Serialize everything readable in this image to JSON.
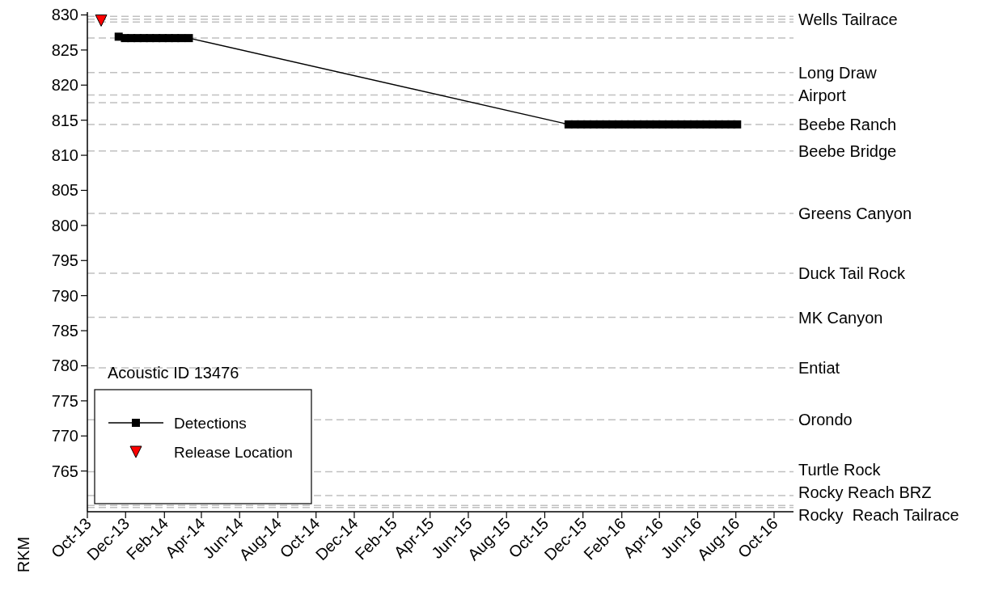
{
  "chart_data": {
    "type": "line",
    "ylabel": "RKM",
    "legend_title": "Acoustic ID 13476",
    "legend": "bottom left",
    "xlim": [
      "2013-10-01",
      "2016-11-01"
    ],
    "xticks": [
      {
        "value": "2013-10-01",
        "label": "Oct-13"
      },
      {
        "value": "2013-12-01",
        "label": "Dec-13"
      },
      {
        "value": "2014-02-01",
        "label": "Feb-14"
      },
      {
        "value": "2014-04-01",
        "label": "Apr-14"
      },
      {
        "value": "2014-06-01",
        "label": "Jun-14"
      },
      {
        "value": "2014-08-01",
        "label": "Aug-14"
      },
      {
        "value": "2014-10-01",
        "label": "Oct-14"
      },
      {
        "value": "2014-12-01",
        "label": "Dec-14"
      },
      {
        "value": "2015-02-01",
        "label": "Feb-15"
      },
      {
        "value": "2015-04-01",
        "label": "Apr-15"
      },
      {
        "value": "2015-06-01",
        "label": "Jun-15"
      },
      {
        "value": "2015-08-01",
        "label": "Aug-15"
      },
      {
        "value": "2015-10-01",
        "label": "Oct-15"
      },
      {
        "value": "2015-12-01",
        "label": "Dec-15"
      },
      {
        "value": "2016-02-01",
        "label": "Feb-16"
      },
      {
        "value": "2016-04-01",
        "label": "Apr-16"
      },
      {
        "value": "2016-06-01",
        "label": "Jun-16"
      },
      {
        "value": "2016-08-01",
        "label": "Aug-16"
      },
      {
        "value": "2016-10-01",
        "label": "Oct-16"
      }
    ],
    "ylim": [
      759.2,
      830.4
    ],
    "yticks": [
      765,
      770,
      775,
      780,
      785,
      790,
      795,
      800,
      805,
      810,
      815,
      820,
      825,
      830
    ],
    "series": [
      {
        "name": "Detections",
        "marker": "square",
        "color": "#000000",
        "x": [
          "2013-11-20",
          "2013-11-30",
          "2013-12-10",
          "2013-12-20",
          "2013-12-30",
          "2014-01-09",
          "2014-01-19",
          "2014-01-29",
          "2014-02-08",
          "2014-02-18",
          "2014-02-28",
          "2014-03-12",
          "2015-11-08",
          "2015-11-18",
          "2015-11-28",
          "2015-12-08",
          "2015-12-18",
          "2015-12-28",
          "2016-01-07",
          "2016-01-17",
          "2016-01-27",
          "2016-02-06",
          "2016-02-16",
          "2016-02-26",
          "2016-03-07",
          "2016-03-17",
          "2016-03-27",
          "2016-04-06",
          "2016-04-16",
          "2016-04-26",
          "2016-05-06",
          "2016-05-16",
          "2016-05-26",
          "2016-06-05",
          "2016-06-15",
          "2016-06-25",
          "2016-07-05",
          "2016-07-15",
          "2016-07-25",
          "2016-08-03"
        ],
        "values": [
          826.9,
          826.7,
          826.7,
          826.7,
          826.7,
          826.7,
          826.7,
          826.7,
          826.7,
          826.7,
          826.7,
          826.7,
          814.4,
          814.4,
          814.4,
          814.4,
          814.4,
          814.4,
          814.4,
          814.4,
          814.4,
          814.4,
          814.4,
          814.4,
          814.4,
          814.4,
          814.4,
          814.4,
          814.4,
          814.4,
          814.4,
          814.4,
          814.4,
          814.4,
          814.4,
          814.4,
          814.4,
          814.4,
          814.4,
          814.4
        ]
      },
      {
        "name": "Release Location",
        "type": "scatter",
        "marker": "triangle",
        "color": "#ff0000",
        "x": [
          "2013-10-23"
        ],
        "values": [
          829.2
        ]
      }
    ],
    "ref_lines": [
      {
        "axis": "y",
        "value": 829.8,
        "color": "#c0c0c0",
        "line_style": "dashed"
      },
      {
        "axis": "y",
        "value": 829.4,
        "label": "Wells Tailrace",
        "color": "#c0c0c0",
        "line_style": "dashed"
      },
      {
        "axis": "y",
        "value": 829.0,
        "color": "#c0c0c0",
        "line_style": "dashed"
      },
      {
        "axis": "y",
        "value": 826.7,
        "color": "#c0c0c0",
        "line_style": "dashed"
      },
      {
        "axis": "y",
        "value": 821.8,
        "label": "Long Draw",
        "color": "#c0c0c0",
        "line_style": "dashed"
      },
      {
        "axis": "y",
        "value": 818.6,
        "label": "Airport",
        "color": "#c0c0c0",
        "line_style": "dashed"
      },
      {
        "axis": "y",
        "value": 817.5,
        "color": "#c0c0c0",
        "line_style": "dashed"
      },
      {
        "axis": "y",
        "value": 814.4,
        "label": "Beebe Ranch",
        "color": "#c0c0c0",
        "line_style": "dashed"
      },
      {
        "axis": "y",
        "value": 810.6,
        "label": "Beebe Bridge",
        "color": "#c0c0c0",
        "line_style": "dashed"
      },
      {
        "axis": "y",
        "value": 801.7,
        "label": "Greens Canyon",
        "color": "#c0c0c0",
        "line_style": "dashed"
      },
      {
        "axis": "y",
        "value": 793.2,
        "label": "Duck Tail Rock",
        "color": "#c0c0c0",
        "line_style": "dashed"
      },
      {
        "axis": "y",
        "value": 786.9,
        "label": "MK Canyon",
        "color": "#c0c0c0",
        "line_style": "dashed"
      },
      {
        "axis": "y",
        "value": 779.7,
        "label": "Entiat",
        "color": "#c0c0c0",
        "line_style": "dashed"
      },
      {
        "axis": "y",
        "value": 772.3,
        "label": "Orondo",
        "color": "#c0c0c0",
        "line_style": "dashed"
      },
      {
        "axis": "y",
        "value": 764.9,
        "label": "Turtle Rock",
        "color": "#c0c0c0",
        "line_style": "dashed"
      },
      {
        "axis": "y",
        "value": 761.5,
        "label": "Rocky Reach BRZ",
        "color": "#c0c0c0",
        "line_style": "dashed"
      },
      {
        "axis": "y",
        "value": 760.1,
        "color": "#c0c0c0",
        "line_style": "dashed"
      },
      {
        "axis": "y",
        "value": 759.8,
        "label": "Rocky  Reach Tailrace",
        "color": "#c0c0c0",
        "line_style": "dashed"
      }
    ]
  }
}
